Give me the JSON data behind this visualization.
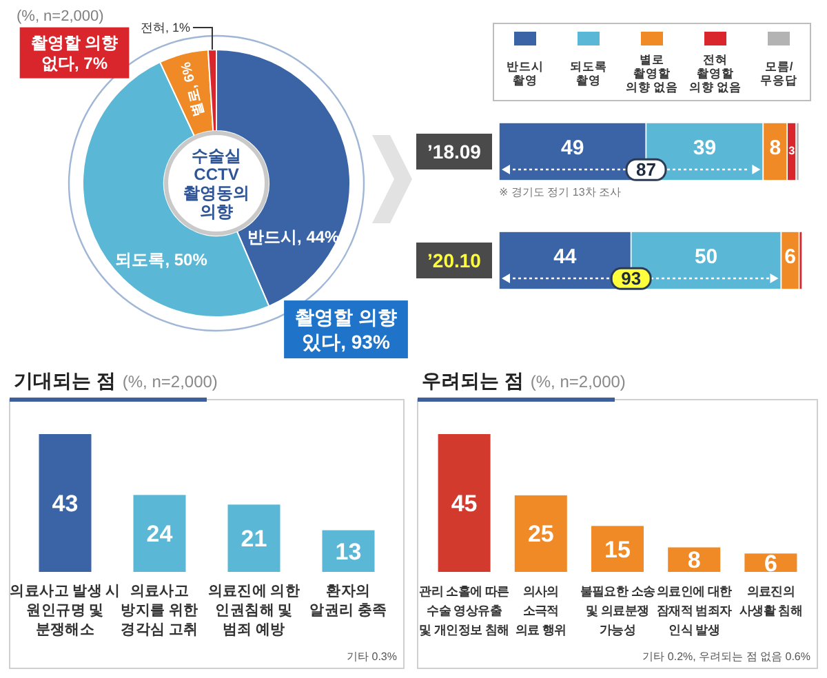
{
  "chart_data": [
    {
      "type": "donut",
      "title": "수술실\nCCTV\n촬영동의\n의향",
      "subtitle": "(%, n=2,000)",
      "categories": [
        "반드시",
        "되도록",
        "별로",
        "전혀"
      ],
      "values": [
        44,
        50,
        6,
        1
      ],
      "colors": [
        "#3a64a6",
        "#5ab8d6",
        "#f08a26",
        "#d8262c"
      ],
      "value_labels": [
        "44%",
        "50%",
        "6%",
        "1%"
      ],
      "annotations": [
        "촬영할 의향\n없다, 7%",
        "촬영할 의향\n있다, 93%"
      ]
    },
    {
      "type": "bar",
      "orientation": "horizontal",
      "stacked": true,
      "categories": [
        "’18.09",
        "’20.10"
      ],
      "series": [
        {
          "name": "반드시\n촬영",
          "color": "#3a64a6",
          "values": [
            49,
            44
          ],
          "value_labels": [
            "49",
            "44"
          ]
        },
        {
          "name": "되도록\n촬영",
          "color": "#5ab8d6",
          "values": [
            39,
            50
          ],
          "value_labels": [
            "39",
            "50"
          ]
        },
        {
          "name": "별로\n촬영할\n의향 없음",
          "color": "#f08a26",
          "values": [
            8,
            6
          ],
          "value_labels": [
            "8",
            "6"
          ]
        },
        {
          "name": "전혀\n촬영할\n의향 없음",
          "color": "#d8262c",
          "values": [
            3,
            1
          ],
          "value_labels": [
            "3",
            null
          ]
        },
        {
          "name": "모름/\n무응답",
          "color": "#b3b3b3",
          "values": [
            1,
            null
          ],
          "value_labels": [
            null,
            null
          ]
        }
      ],
      "legend": "top",
      "annotations": [
        "87",
        "93",
        "※ 경기도 정기 13차 조사"
      ]
    },
    {
      "type": "bar",
      "title": "기대되는 점",
      "subtitle": "(%, n=2,000)",
      "categories": [
        "의료사고 발생 시\n원인규명 및\n분쟁해소",
        "의료사고\n방지를 위한\n경각심 고취",
        "의료진에 의한\n인권침해 및\n범죄 예방",
        "환자의\n알권리 충족"
      ],
      "values": [
        43,
        24,
        21,
        13
      ],
      "colors": [
        "#3a64a6",
        "#5ab8d6",
        "#5ab8d6",
        "#5ab8d6"
      ],
      "data_labels": true,
      "annotations": [
        "기타 0.3%"
      ]
    },
    {
      "type": "bar",
      "title": "우려되는 점",
      "subtitle": "(%, n=2,000)",
      "categories": [
        "관리 소홀에 따른\n수술 영상유출\n및 개인정보 침해",
        "의사의\n소극적\n의료 행위",
        "불필요한 소송\n및 의료분쟁\n가능성",
        "의료인에 대한\n잠재적 범죄자\n인식 발생",
        "의료진의\n사생활 침해"
      ],
      "values": [
        45,
        25,
        15,
        8,
        6
      ],
      "colors": [
        "#d23a2e",
        "#f08a26",
        "#f08a26",
        "#f08a26",
        "#f08a26"
      ],
      "data_labels": true,
      "annotations": [
        "기타 0.2%, 우려되는 점 없음 0.6%"
      ]
    }
  ]
}
